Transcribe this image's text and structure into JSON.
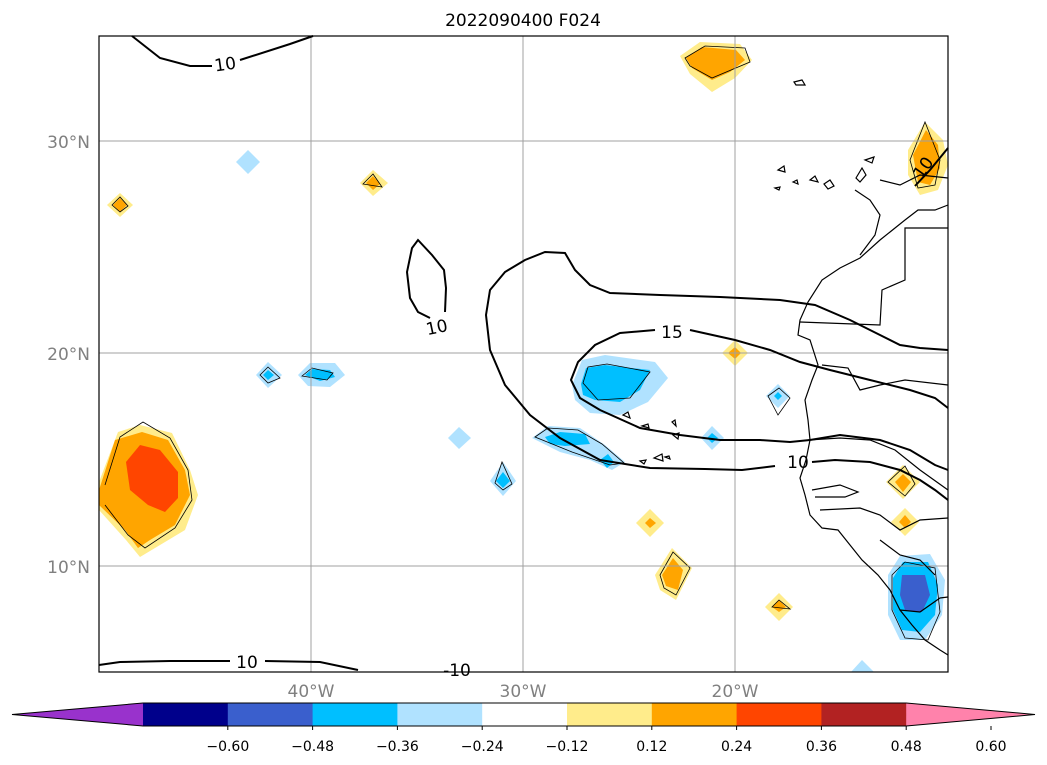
{
  "title": "2022090400 F024",
  "map": {
    "lat_ticks": [
      "30°N",
      "20°N",
      "10°N"
    ],
    "lon_ticks": [
      "40°W",
      "30°W",
      "20°W"
    ],
    "contour_labels": [
      "10",
      "10",
      "15",
      "10",
      "10",
      "10",
      "-10"
    ],
    "gridline_color": "#a0a0a0",
    "axis_label_color": "#808080"
  },
  "colorbar": {
    "tick_labels": [
      "−0.60",
      "−0.48",
      "−0.36",
      "−0.24",
      "−0.12",
      "0.12",
      "0.24",
      "0.36",
      "0.48",
      "0.60"
    ],
    "colors": [
      "#9932cc",
      "#00008b",
      "#3a5fcd",
      "#00bfff",
      "#b0e2ff",
      "#ffffff",
      "#ffec8b",
      "#ffa500",
      "#ff4500",
      "#b22222",
      "#ff82ab"
    ],
    "extend": "both"
  }
}
